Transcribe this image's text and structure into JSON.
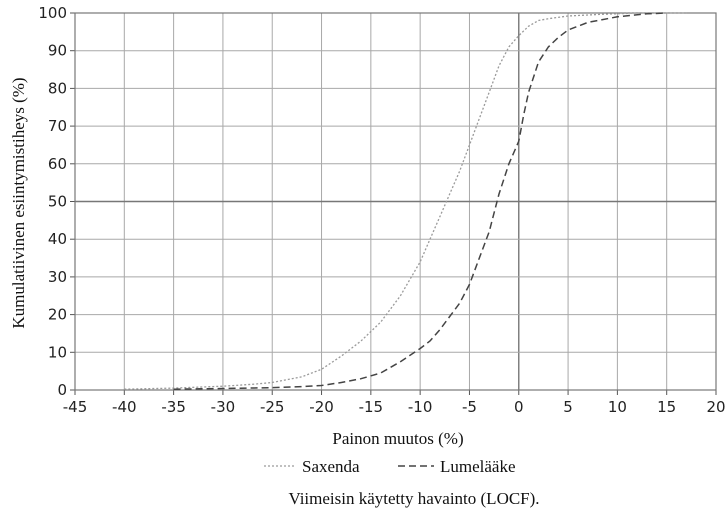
{
  "chart_data": {
    "type": "line",
    "title": "",
    "xlabel": "Painon muutos (%)",
    "ylabel": "Kumulatiivinen esiintymistiheys (%)",
    "xlim": [
      -45,
      20
    ],
    "ylim": [
      0,
      100
    ],
    "x_ticks": [
      -45,
      -40,
      -35,
      -30,
      -25,
      -20,
      -15,
      -10,
      -5,
      0,
      5,
      10,
      15,
      20
    ],
    "y_ticks": [
      0,
      10,
      20,
      30,
      40,
      50,
      60,
      70,
      80,
      90,
      100
    ],
    "grid": true,
    "legend_position": "bottom",
    "caption": "Viimeisin käytetty havainto (LOCF).",
    "series": [
      {
        "name": "Saxenda",
        "style": "dotted",
        "color": "#9a9a9a",
        "points": [
          [
            -40,
            0.2
          ],
          [
            -35,
            0.5
          ],
          [
            -30,
            1
          ],
          [
            -27,
            1.5
          ],
          [
            -25,
            2
          ],
          [
            -22,
            3.5
          ],
          [
            -20,
            5.5
          ],
          [
            -18,
            9
          ],
          [
            -16,
            13
          ],
          [
            -14,
            18
          ],
          [
            -12,
            25
          ],
          [
            -10,
            34
          ],
          [
            -9,
            40
          ],
          [
            -8,
            46
          ],
          [
            -7,
            52
          ],
          [
            -6,
            58
          ],
          [
            -5,
            65
          ],
          [
            -4,
            72
          ],
          [
            -3,
            79
          ],
          [
            -2,
            86
          ],
          [
            -1,
            91
          ],
          [
            0,
            94
          ],
          [
            1,
            96.5
          ],
          [
            2,
            98
          ],
          [
            3,
            98.5
          ],
          [
            5,
            99.2
          ],
          [
            8,
            99.6
          ],
          [
            12,
            100
          ],
          [
            17,
            100
          ]
        ]
      },
      {
        "name": "Lumelääke",
        "style": "dashed",
        "color": "#444444",
        "points": [
          [
            -35,
            0.2
          ],
          [
            -30,
            0.4
          ],
          [
            -25,
            0.6
          ],
          [
            -22,
            0.9
          ],
          [
            -20,
            1.2
          ],
          [
            -18,
            2
          ],
          [
            -16,
            3
          ],
          [
            -14,
            4.5
          ],
          [
            -12,
            7.5
          ],
          [
            -10,
            11
          ],
          [
            -9,
            13
          ],
          [
            -8,
            16
          ],
          [
            -7,
            19.5
          ],
          [
            -6,
            23
          ],
          [
            -5,
            28
          ],
          [
            -4,
            35
          ],
          [
            -3,
            42
          ],
          [
            -2,
            52
          ],
          [
            -1,
            60
          ],
          [
            0,
            66
          ],
          [
            0.5,
            73
          ],
          [
            1,
            79
          ],
          [
            2,
            87
          ],
          [
            3,
            91
          ],
          [
            4,
            93.5
          ],
          [
            5,
            95.5
          ],
          [
            7,
            97.5
          ],
          [
            10,
            99
          ],
          [
            13,
            99.8
          ],
          [
            15,
            100
          ]
        ]
      }
    ]
  }
}
